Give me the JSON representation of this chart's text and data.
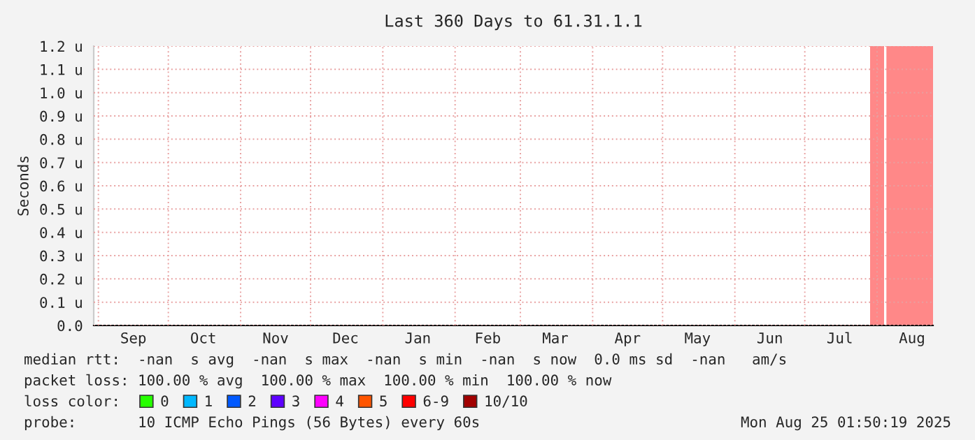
{
  "chart_data": {
    "type": "area",
    "title": "Last 360 Days to 61.31.1.1",
    "ylabel": "Seconds",
    "xlim": [
      "2024-08-30",
      "2025-08-25"
    ],
    "ylim": [
      0,
      1.2
    ],
    "yticks": [
      {
        "value": 0,
        "label": "0.0"
      },
      {
        "value": 0.1,
        "label": "0.1 u"
      },
      {
        "value": 0.2,
        "label": "0.2 u"
      },
      {
        "value": 0.3,
        "label": "0.3 u"
      },
      {
        "value": 0.4,
        "label": "0.4 u"
      },
      {
        "value": 0.5,
        "label": "0.5 u"
      },
      {
        "value": 0.6,
        "label": "0.6 u"
      },
      {
        "value": 0.7,
        "label": "0.7 u"
      },
      {
        "value": 0.8,
        "label": "0.8 u"
      },
      {
        "value": 0.9,
        "label": "0.9 u"
      },
      {
        "value": 1.0,
        "label": "1.0 u"
      },
      {
        "value": 1.1,
        "label": "1.1 u"
      },
      {
        "value": 1.2,
        "label": "1.2 u"
      }
    ],
    "xticks": [
      {
        "value": "2024-09-01",
        "label": null
      },
      {
        "value": "2024-09-16",
        "label": "Sep"
      },
      {
        "value": "2024-10-01",
        "label": null
      },
      {
        "value": "2024-10-16",
        "label": "Oct"
      },
      {
        "value": "2024-11-01",
        "label": null
      },
      {
        "value": "2024-11-16",
        "label": "Nov"
      },
      {
        "value": "2024-12-01",
        "label": null
      },
      {
        "value": "2024-12-16",
        "label": "Dec"
      },
      {
        "value": "2025-01-01",
        "label": null
      },
      {
        "value": "2025-01-16",
        "label": "Jan"
      },
      {
        "value": "2025-02-01",
        "label": null
      },
      {
        "value": "2025-02-15",
        "label": "Feb"
      },
      {
        "value": "2025-03-01",
        "label": null
      },
      {
        "value": "2025-03-16",
        "label": "Mar"
      },
      {
        "value": "2025-04-01",
        "label": null
      },
      {
        "value": "2025-04-16",
        "label": "Apr"
      },
      {
        "value": "2025-05-01",
        "label": null
      },
      {
        "value": "2025-05-16",
        "label": "May"
      },
      {
        "value": "2025-06-01",
        "label": null
      },
      {
        "value": "2025-06-16",
        "label": "Jun"
      },
      {
        "value": "2025-07-01",
        "label": null
      },
      {
        "value": "2025-07-16",
        "label": "Jul"
      },
      {
        "value": "2025-08-01",
        "label": null
      },
      {
        "value": "2025-08-16",
        "label": "Aug"
      }
    ],
    "grid": true,
    "legend": "bottom",
    "legend_title": "loss color:",
    "series": [
      {
        "color": "#ff8888",
        "x": [
          "2025-07-29",
          "2025-08-04",
          "2025-08-04T12:00",
          "2025-08-05",
          "2025-08-25"
        ],
        "values": [
          1.2,
          1.2,
          null,
          1.2,
          1.2
        ]
      },
      {
        "name": "0",
        "color": "#26ff00"
      },
      {
        "name": "1",
        "color": "#00b8ff"
      },
      {
        "name": "2",
        "color": "#0059ff"
      },
      {
        "name": "3",
        "color": "#5e00ff"
      },
      {
        "name": "4",
        "color": "#ff00ff"
      },
      {
        "name": "5",
        "color": "#ff5500"
      },
      {
        "name": "6-9",
        "color": "#ff0000"
      },
      {
        "name": "10/10",
        "color": "#a10000"
      }
    ],
    "annotations": [
      "median rtt:  -nan  s avg  -nan  s max  -nan  s min  -nan  s now  0.0 ms sd  -nan   am/s",
      "packet loss: 100.00 % avg  100.00 % max  100.00 % min  100.00 % now",
      "probe:       10 ICMP Echo Pings (56 Bytes) every 60s",
      "Mon Aug 25 01:50:19 2025"
    ]
  }
}
